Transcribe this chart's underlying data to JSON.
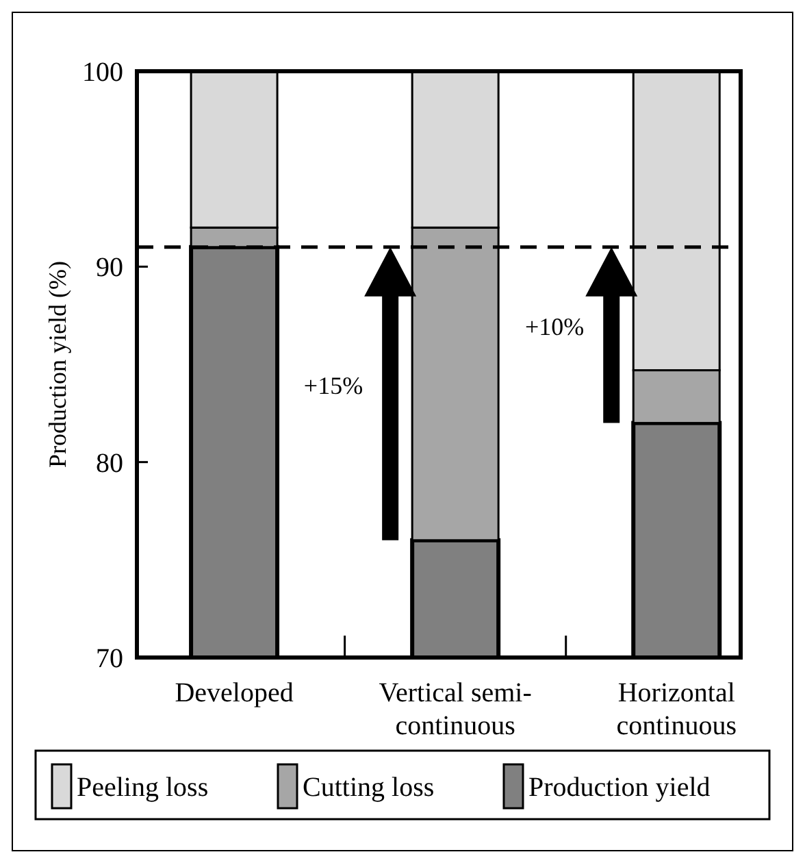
{
  "chart_data": {
    "type": "bar",
    "ylabel": "Production yield (%)",
    "categories": [
      "Developed",
      "Vertical semi-continuous",
      "Horizontal continuous"
    ],
    "stacked": true,
    "series": [
      {
        "name": "Production yield",
        "color": "#808080",
        "values": [
          91,
          76,
          82
        ]
      },
      {
        "name": "Cutting loss",
        "color": "#a6a6a6",
        "values": [
          1,
          16,
          2.7
        ],
        "base": [
          91,
          76,
          82
        ]
      },
      {
        "name": "Peeling loss",
        "color": "#d9d9d9",
        "values": [
          8,
          8,
          15.3
        ],
        "base": [
          92,
          92,
          84.7
        ]
      }
    ],
    "ylim": [
      70,
      100
    ],
    "yticks": [
      70,
      80,
      90,
      100
    ],
    "grid": false,
    "legend": "bottom",
    "ref_lines": [
      {
        "axis": "y",
        "value": 91,
        "line_style": "dashed",
        "color": "#000000"
      }
    ],
    "annotations": [
      "+15%",
      "+10%"
    ]
  }
}
